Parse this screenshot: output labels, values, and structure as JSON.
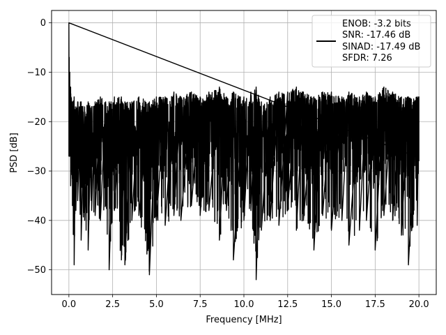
{
  "chart_data": {
    "type": "line",
    "xlabel": "Frequency [MHz]",
    "ylabel": "PSD [dB]",
    "xlim": [
      -0.99,
      20.99
    ],
    "ylim": [
      -55,
      2.5
    ],
    "xticks": [
      0.0,
      2.5,
      5.0,
      7.5,
      10.0,
      12.5,
      15.0,
      17.5,
      20.0
    ],
    "xtick_labels": [
      "0.0",
      "2.5",
      "5.0",
      "7.5",
      "10.0",
      "12.5",
      "15.0",
      "17.5",
      "20.0"
    ],
    "yticks": [
      0,
      -10,
      -20,
      -30,
      -40,
      -50
    ],
    "ytick_labels": [
      "0",
      "−10",
      "−20",
      "−30",
      "−40",
      "−50"
    ],
    "grid": true,
    "legend_position": "top-right",
    "legend_entries": [
      "ENOB: -3.2 bits",
      "SNR: -17.46 dB",
      "SINAD: -17.49 dB",
      "SFDR: 7.26"
    ],
    "series": [
      {
        "color": "#000000",
        "x": [
          0.0,
          0.02,
          0.05,
          0.1,
          0.2,
          0.3,
          0.4,
          0.5,
          0.7,
          0.9,
          1.1,
          1.3,
          1.5,
          1.8,
          2.1,
          2.3,
          2.6,
          3.0,
          3.2,
          3.6,
          4.0,
          4.6,
          5.0,
          5.5,
          6.0,
          6.4,
          7.0,
          7.5,
          8.0,
          8.6,
          9.0,
          9.4,
          10.0,
          10.4,
          10.7,
          11.0,
          11.5,
          12.0,
          12.5,
          13.0,
          13.4,
          14.0,
          14.5,
          15.0,
          15.6,
          16.0,
          16.6,
          17.0,
          17.5,
          18.0,
          18.5,
          19.0,
          19.4,
          19.9,
          20.0
        ],
        "max": [
          0.0,
          -7,
          -10,
          -13,
          -16,
          -15,
          -17,
          -16,
          -16,
          -17,
          -16,
          -17,
          -16,
          -15,
          -16,
          -16,
          -15,
          -15,
          -16,
          -16,
          -15,
          -16,
          -15,
          -15,
          -14,
          -15,
          -14,
          -15,
          -14,
          -13,
          -15,
          -14,
          -15,
          -14,
          -13,
          -16,
          -15,
          -14,
          -14,
          -13,
          -14,
          -15,
          -14,
          -14,
          -15,
          -14,
          -15,
          -14,
          -15,
          -13,
          -14,
          -15,
          -15,
          -15,
          -15
        ],
        "min": [
          -27,
          -27,
          -27,
          -33,
          -37,
          -49,
          -38,
          -36,
          -44,
          -40,
          -46,
          -38,
          -39,
          -40,
          -37,
          -50,
          -38,
          -48,
          -49,
          -40,
          -39,
          -51,
          -40,
          -41,
          -39,
          -40,
          -37,
          -39,
          -38,
          -44,
          -38,
          -48,
          -40,
          -38,
          -52,
          -42,
          -40,
          -41,
          -38,
          -42,
          -40,
          -46,
          -39,
          -42,
          -40,
          -45,
          -42,
          -40,
          -46,
          -39,
          -40,
          -43,
          -49,
          -41,
          -28
        ]
      }
    ]
  }
}
